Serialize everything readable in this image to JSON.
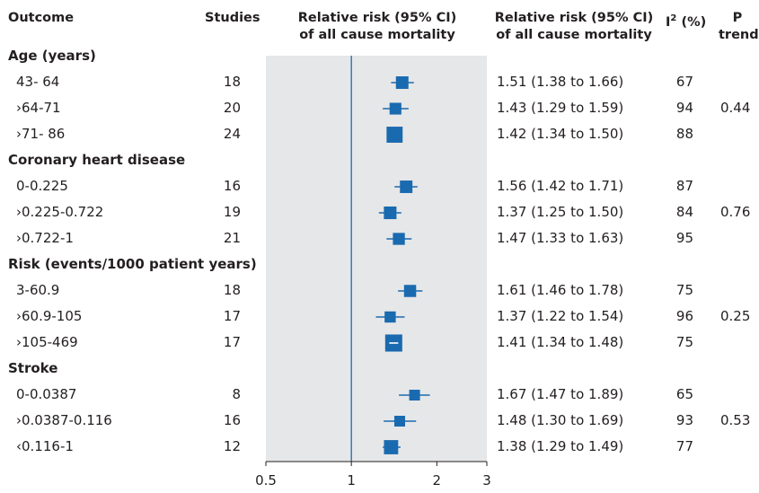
{
  "header": {
    "outcome": "Outcome",
    "studies": "Studies",
    "rr_plot_line1": "Relative risk (95% CI)",
    "rr_plot_line2": "of all cause mortality",
    "rr_text_line1": "Relative risk (95% CI)",
    "rr_text_line2": "of all cause mortality",
    "i2_base": "I",
    "i2_sup": "2",
    "i2_unit": "(%)",
    "p_line1": "P",
    "p_line2": "trend"
  },
  "sections": [
    {
      "title": "Age (years)",
      "rows": [
        {
          "label": "43- 64",
          "studies": "18",
          "rr_text": "1.51 (1.38 to 1.66)",
          "i2": "67",
          "p_trend": ""
        },
        {
          "label": "›64-71",
          "studies": "20",
          "rr_text": "1.43 (1.29 to 1.59)",
          "i2": "94",
          "p_trend": "0.44"
        },
        {
          "label": "›71- 86",
          "studies": "24",
          "rr_text": "1.42 (1.34 to 1.50)",
          "i2": "88",
          "p_trend": ""
        }
      ]
    },
    {
      "title": "Coronary heart disease",
      "rows": [
        {
          "label": "0-0.225",
          "studies": "16",
          "rr_text": "1.56 (1.42 to 1.71)",
          "i2": "87",
          "p_trend": ""
        },
        {
          "label": "›0.225-0.722",
          "studies": "19",
          "rr_text": "1.37 (1.25 to 1.50)",
          "i2": "84",
          "p_trend": "0.76"
        },
        {
          "label": "›0.722-1",
          "studies": "21",
          "rr_text": "1.47 (1.33 to 1.63)",
          "i2": "95",
          "p_trend": ""
        }
      ]
    },
    {
      "title": "Risk (events/1000 patient years)",
      "rows": [
        {
          "label": "3-60.9",
          "studies": "18",
          "rr_text": "1.61 (1.46 to 1.78)",
          "i2": "75",
          "p_trend": ""
        },
        {
          "label": "›60.9-105",
          "studies": "17",
          "rr_text": "1.37 (1.22 to 1.54)",
          "i2": "96",
          "p_trend": "0.25"
        },
        {
          "label": "›105-469",
          "studies": "17",
          "rr_text": "1.41 (1.34 to 1.48)",
          "i2": "75",
          "p_trend": ""
        }
      ]
    },
    {
      "title": "Stroke",
      "rows": [
        {
          "label": "0-0.0387",
          "studies": "8",
          "rr_text": "1.67 (1.47 to 1.89)",
          "i2": "65",
          "p_trend": ""
        },
        {
          "label": "›0.0387-0.116",
          "studies": "16",
          "rr_text": "1.48 (1.30 to 1.69)",
          "i2": "93",
          "p_trend": "0.53"
        },
        {
          "label": "‹0.116-1",
          "studies": "12",
          "rr_text": "1.38 (1.29 to 1.49)",
          "i2": "77",
          "p_trend": ""
        }
      ]
    }
  ],
  "colors": {
    "marker": "#1a6aaf",
    "reference_line": "#1a6aaf",
    "panel": "#e6e7e8",
    "axis": "#231f20"
  },
  "chart_data": {
    "type": "forest",
    "scale": "log",
    "xlim": [
      0.5,
      3
    ],
    "xticks": [
      0.5,
      1,
      2,
      3
    ],
    "xtick_labels": [
      "0.5",
      "1",
      "2",
      "3"
    ],
    "reference_line": 1,
    "rows": [
      {
        "label": "43- 64",
        "rr": 1.51,
        "lo": 1.38,
        "hi": 1.66
      },
      {
        "label": "›64-71",
        "rr": 1.43,
        "lo": 1.29,
        "hi": 1.59
      },
      {
        "label": "›71- 86",
        "rr": 1.42,
        "lo": 1.34,
        "hi": 1.5
      },
      {
        "label": "0-0.225",
        "rr": 1.56,
        "lo": 1.42,
        "hi": 1.71
      },
      {
        "label": "›0.225-0.722",
        "rr": 1.37,
        "lo": 1.25,
        "hi": 1.5
      },
      {
        "label": "›0.722-1",
        "rr": 1.47,
        "lo": 1.33,
        "hi": 1.63
      },
      {
        "label": "3-60.9",
        "rr": 1.61,
        "lo": 1.46,
        "hi": 1.78
      },
      {
        "label": "›60.9-105",
        "rr": 1.37,
        "lo": 1.22,
        "hi": 1.54
      },
      {
        "label": "›105-469",
        "rr": 1.41,
        "lo": 1.34,
        "hi": 1.48
      },
      {
        "label": "0-0.0387",
        "rr": 1.67,
        "lo": 1.47,
        "hi": 1.89
      },
      {
        "label": "›0.0387-0.116",
        "rr": 1.48,
        "lo": 1.3,
        "hi": 1.69
      },
      {
        "label": "‹0.116-1",
        "rr": 1.38,
        "lo": 1.29,
        "hi": 1.49
      }
    ]
  }
}
